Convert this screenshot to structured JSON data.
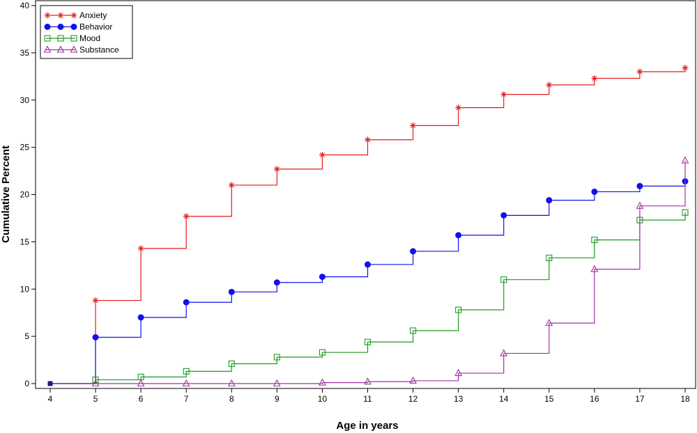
{
  "chart_data": {
    "type": "line",
    "step": true,
    "xlabel": "Age in years",
    "ylabel": "Cumulative Percent",
    "xlim": [
      4,
      18
    ],
    "ylim": [
      0,
      40
    ],
    "x_ticks": [
      4,
      5,
      6,
      7,
      8,
      9,
      10,
      11,
      12,
      13,
      14,
      15,
      16,
      17,
      18
    ],
    "y_ticks": [
      0,
      5,
      10,
      15,
      20,
      25,
      30,
      35,
      40
    ],
    "grid": false,
    "legend_position": "top-left",
    "x": [
      4,
      5,
      6,
      7,
      8,
      9,
      10,
      11,
      12,
      13,
      14,
      15,
      16,
      17,
      18
    ],
    "series": [
      {
        "name": "Anxiety",
        "color": "#e41a1c",
        "marker": "star",
        "values": [
          0,
          8.8,
          14.3,
          17.7,
          21.0,
          22.7,
          24.2,
          25.8,
          27.3,
          29.2,
          30.6,
          31.6,
          32.3,
          33.0,
          33.4
        ]
      },
      {
        "name": "Behavior",
        "color": "#1010ee",
        "marker": "filled-circle",
        "values": [
          0,
          4.9,
          7.0,
          8.6,
          9.7,
          10.7,
          11.3,
          12.6,
          14.0,
          15.7,
          17.8,
          19.4,
          20.3,
          20.9,
          21.4
        ]
      },
      {
        "name": "Mood",
        "color": "#1e9a1e",
        "marker": "open-square",
        "values": [
          0,
          0.4,
          0.7,
          1.3,
          2.1,
          2.8,
          3.3,
          4.4,
          5.6,
          7.8,
          11.0,
          13.3,
          15.2,
          17.3,
          18.1
        ]
      },
      {
        "name": "Substance",
        "color": "#a030a0",
        "marker": "open-triangle",
        "values": [
          0,
          0,
          0,
          0,
          0,
          0,
          0.1,
          0.2,
          0.3,
          1.1,
          3.2,
          6.4,
          12.1,
          18.8,
          23.6
        ]
      }
    ]
  }
}
